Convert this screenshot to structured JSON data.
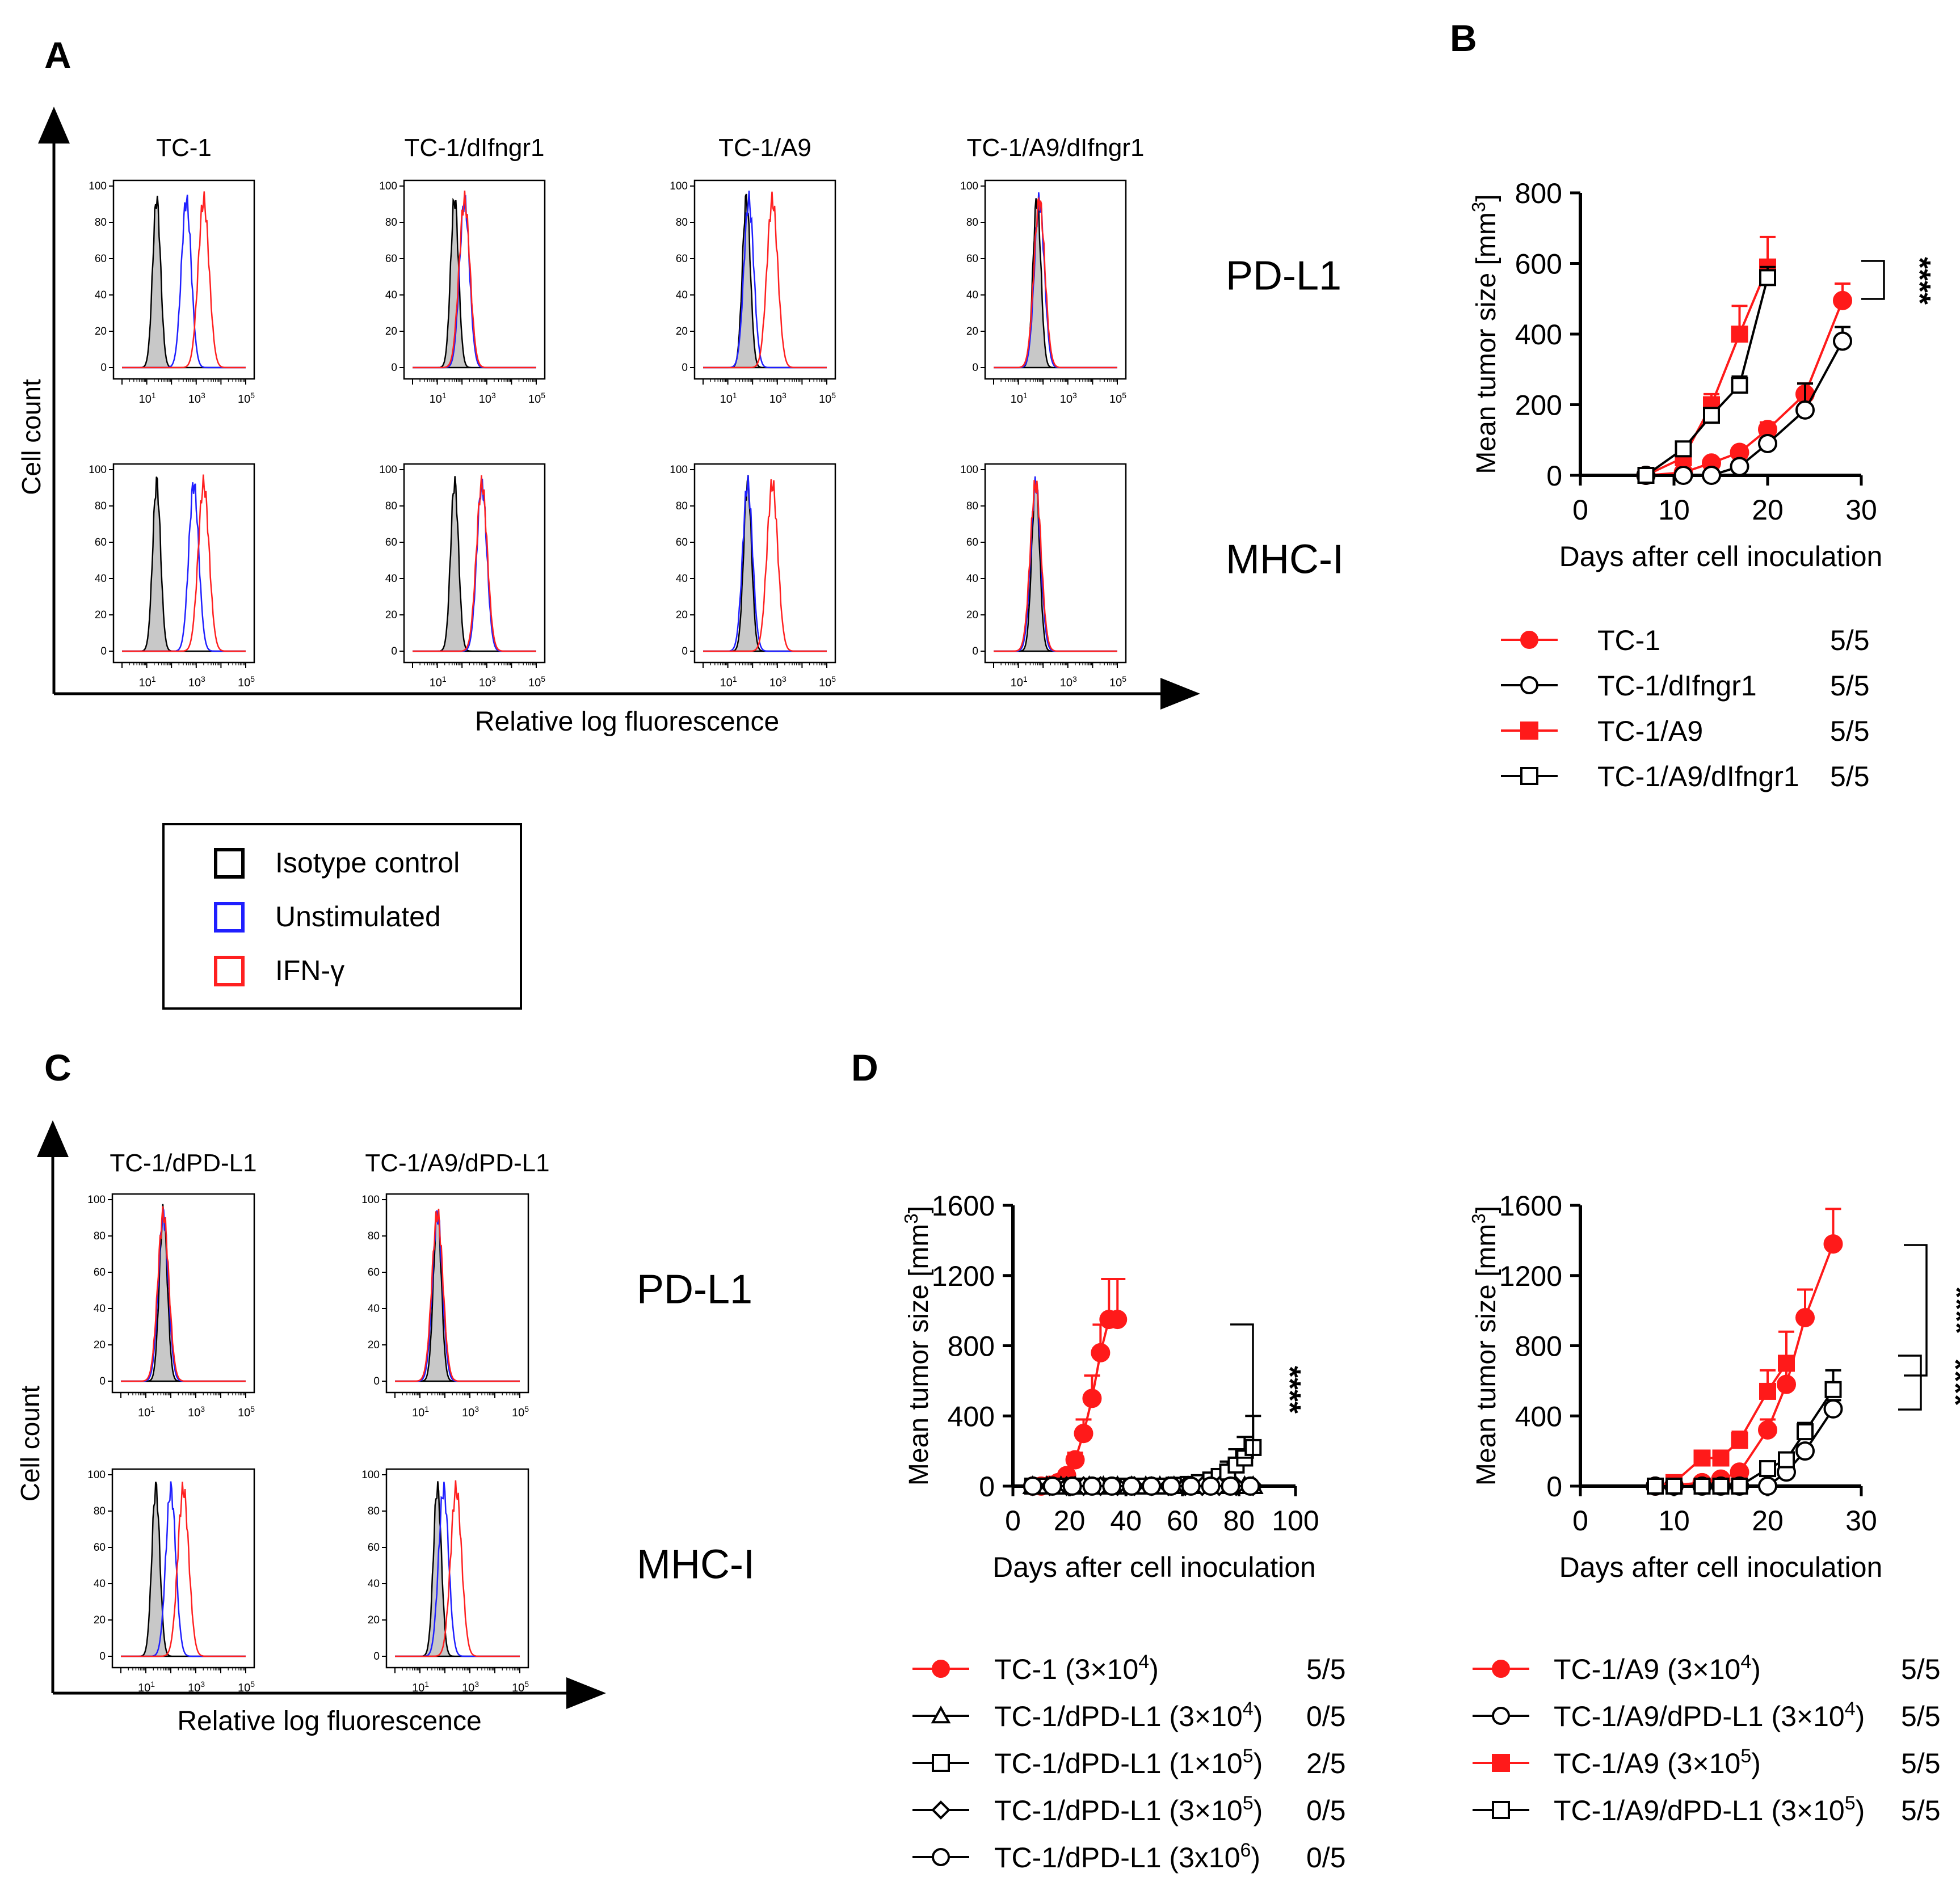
{
  "panel_labels": {
    "a": "A",
    "b": "B",
    "c": "C",
    "d": "D"
  },
  "flow_common": {
    "y_axis_label": "Cell count",
    "x_axis_label": "Relative log fluorescence",
    "y_ticks": [
      "100",
      "80",
      "60",
      "40",
      "20",
      "0"
    ],
    "x_tick_base": "10",
    "x_tick_exps": [
      "1",
      "3",
      "5"
    ]
  },
  "legend_flow": {
    "items": [
      {
        "label": "Isotype control",
        "color": "#000000"
      },
      {
        "label": "Unstimulated",
        "color": "#1f1fff"
      },
      {
        "label": "IFN-γ",
        "color": "#ff2020"
      }
    ]
  },
  "panel_a": {
    "columns": [
      "TC-1",
      "TC-1/dIfngr1",
      "TC-1/A9",
      "TC-1/A9/dIfngr1"
    ],
    "rows": [
      "PD-L1",
      "MHC-I"
    ],
    "peaks": [
      [
        {
          "iso": 1.4,
          "uns": 2.6,
          "ifn": 3.3
        },
        {
          "iso": 1.7,
          "uns": 2.1,
          "ifn": 2.1
        },
        {
          "iso": 1.75,
          "uns": 1.85,
          "ifn": 2.8
        },
        {
          "iso": 1.75,
          "uns": 1.85,
          "ifn": 1.85
        }
      ],
      [
        {
          "iso": 1.4,
          "uns": 2.9,
          "ifn": 3.3
        },
        {
          "iso": 1.7,
          "uns": 2.8,
          "ifn": 2.8
        },
        {
          "iso": 1.8,
          "uns": 1.8,
          "ifn": 2.8
        },
        {
          "iso": 1.7,
          "uns": 1.7,
          "ifn": 1.7
        }
      ]
    ]
  },
  "panel_c": {
    "columns": [
      "TC-1/dPD-L1",
      "TC-1/A9/dPD-L1"
    ],
    "rows": [
      "PD-L1",
      "MHC-I"
    ],
    "peaks": [
      [
        {
          "iso": 1.7,
          "uns": 1.7,
          "ifn": 1.7
        },
        {
          "iso": 1.7,
          "uns": 1.7,
          "ifn": 1.7
        }
      ],
      [
        {
          "iso": 1.4,
          "uns": 2.0,
          "ifn": 2.5
        },
        {
          "iso": 1.7,
          "uns": 1.95,
          "ifn": 2.45
        }
      ]
    ]
  },
  "chart_data": [
    {
      "id": "B",
      "type": "line",
      "title": "",
      "xlabel": "Days after cell inoculation",
      "ylabel": "Mean tumor size [mm",
      "ylabel_sup": "3",
      "ylabel_end": "]",
      "xlim": [
        0,
        30
      ],
      "ylim": [
        0,
        800
      ],
      "xticks": [
        0,
        10,
        20,
        30
      ],
      "yticks": [
        0,
        200,
        400,
        600,
        800
      ],
      "significance": "****",
      "series": [
        {
          "name": "TC-1",
          "ratio": "5/5",
          "color": "#ff1a1a",
          "marker": "circle",
          "filled": true,
          "x": [
            7,
            11,
            14,
            17,
            20,
            24,
            28
          ],
          "y": [
            0,
            8,
            35,
            65,
            130,
            230,
            495
          ],
          "err": [
            0,
            4,
            8,
            12,
            20,
            30,
            48
          ]
        },
        {
          "name": "TC-1/dIfngr1",
          "ratio": "5/5",
          "color": "#000000",
          "marker": "circle",
          "filled": false,
          "x": [
            7,
            11,
            14,
            17,
            20,
            24,
            28
          ],
          "y": [
            0,
            0,
            0,
            25,
            90,
            185,
            380
          ],
          "err": [
            0,
            0,
            0,
            6,
            15,
            75,
            40
          ]
        },
        {
          "name": "TC-1/A9",
          "ratio": "5/5",
          "color": "#ff1a1a",
          "marker": "square",
          "filled": true,
          "x": [
            7,
            11,
            14,
            17,
            20
          ],
          "y": [
            0,
            50,
            200,
            400,
            590
          ],
          "err": [
            0,
            10,
            30,
            80,
            85
          ]
        },
        {
          "name": "TC-1/A9/dIfngr1",
          "ratio": "5/5",
          "color": "#000000",
          "marker": "square",
          "filled": false,
          "x": [
            7,
            11,
            14,
            17,
            20
          ],
          "y": [
            0,
            75,
            170,
            255,
            560
          ],
          "err": [
            0,
            10,
            20,
            25,
            30
          ]
        }
      ]
    },
    {
      "id": "D-left",
      "type": "line",
      "title": "",
      "xlabel": "Days after cell inoculation",
      "ylabel": "Mean tumor size [mm",
      "ylabel_sup": "3",
      "ylabel_end": "]",
      "xlim": [
        0,
        100
      ],
      "ylim": [
        0,
        1600
      ],
      "xticks": [
        0,
        20,
        40,
        60,
        80,
        100
      ],
      "yticks": [
        0,
        400,
        800,
        1200,
        1600
      ],
      "significance": "****",
      "series": [
        {
          "name": "TC-1 (3×10",
          "exp": "4",
          "close": ")",
          "ratio": "5/5",
          "color": "#ff1a1a",
          "marker": "circle",
          "filled": true,
          "x": [
            7,
            10,
            13,
            16,
            19,
            22,
            25,
            28,
            31,
            34,
            37
          ],
          "y": [
            0,
            0,
            5,
            20,
            60,
            150,
            300,
            500,
            760,
            950,
            950
          ],
          "err": [
            0,
            0,
            3,
            5,
            15,
            40,
            80,
            130,
            160,
            230,
            230
          ]
        },
        {
          "name": "TC-1/dPD-L1 (3×10",
          "exp": "4",
          "close": ")",
          "ratio": "0/5",
          "color": "#000000",
          "marker": "triangle",
          "filled": false,
          "x": [
            7,
            12,
            17,
            22,
            27,
            32,
            37,
            42,
            47,
            52,
            57,
            62,
            67,
            72,
            77,
            82,
            85
          ],
          "y": [
            0,
            0,
            0,
            0,
            0,
            0,
            0,
            0,
            0,
            0,
            0,
            0,
            0,
            0,
            0,
            0,
            0
          ],
          "err": []
        },
        {
          "name": "TC-1/dPD-L1 (1×10",
          "exp": "5",
          "close": ")",
          "ratio": "2/5",
          "color": "#000000",
          "marker": "square",
          "filled": false,
          "x": [
            7,
            12,
            17,
            22,
            27,
            32,
            37,
            42,
            47,
            52,
            57,
            62,
            66,
            70,
            73,
            76,
            79,
            82,
            85
          ],
          "y": [
            0,
            0,
            0,
            0,
            0,
            0,
            0,
            0,
            0,
            0,
            5,
            10,
            20,
            35,
            55,
            80,
            120,
            160,
            220
          ],
          "err": [
            0,
            0,
            0,
            0,
            0,
            0,
            0,
            0,
            0,
            0,
            5,
            10,
            15,
            25,
            40,
            60,
            90,
            120,
            180
          ]
        },
        {
          "name": "TC-1/dPD-L1 (3×10",
          "exp": "5",
          "close": ")",
          "ratio": "0/5",
          "color": "#000000",
          "marker": "diamond",
          "filled": false,
          "x": [
            7,
            13,
            19,
            25,
            31,
            37,
            43,
            49,
            55,
            61,
            67,
            73,
            79,
            85
          ],
          "y": [
            0,
            0,
            0,
            0,
            0,
            0,
            0,
            0,
            0,
            0,
            0,
            0,
            0,
            0
          ],
          "err": []
        },
        {
          "name": "TC-1/dPD-L1 (3x10",
          "exp": "6",
          "close": ")",
          "ratio": "0/5",
          "color": "#000000",
          "marker": "circle",
          "filled": false,
          "x": [
            7,
            14,
            21,
            28,
            35,
            42,
            49,
            56,
            63,
            70,
            77,
            84
          ],
          "y": [
            0,
            0,
            0,
            0,
            0,
            0,
            0,
            0,
            0,
            0,
            0,
            0
          ],
          "err": []
        }
      ]
    },
    {
      "id": "D-right",
      "type": "line",
      "title": "",
      "xlabel": "Days after cell inoculation",
      "ylabel": "Mean tumor size [mm",
      "ylabel_sup": "3",
      "ylabel_end": "]",
      "xlim": [
        0,
        30
      ],
      "ylim": [
        0,
        1600
      ],
      "xticks": [
        0,
        10,
        20,
        30
      ],
      "yticks": [
        0,
        400,
        800,
        1200,
        1600
      ],
      "significance": [
        "****",
        "****"
      ],
      "series": [
        {
          "name": "TC-1/A9 (3×10",
          "exp": "4",
          "close": ")",
          "ratio": "5/5",
          "color": "#ff1a1a",
          "marker": "circle",
          "filled": true,
          "x": [
            8,
            10,
            13,
            15,
            17,
            20,
            22,
            24,
            27
          ],
          "y": [
            0,
            5,
            20,
            40,
            80,
            320,
            580,
            960,
            1380
          ],
          "err": [
            0,
            3,
            8,
            12,
            20,
            60,
            90,
            160,
            200
          ]
        },
        {
          "name": "TC-1/A9/dPD-L1 (3×10",
          "exp": "4",
          "close": ")",
          "ratio": "5/5",
          "color": "#000000",
          "marker": "circle",
          "filled": false,
          "x": [
            8,
            10,
            13,
            15,
            17,
            20,
            22,
            24,
            27
          ],
          "y": [
            0,
            0,
            0,
            0,
            0,
            0,
            80,
            200,
            440
          ],
          "err": [
            0,
            0,
            0,
            0,
            0,
            0,
            10,
            30,
            50
          ]
        },
        {
          "name": "TC-1/A9 (3×10",
          "exp": "5",
          "close": ")",
          "ratio": "5/5",
          "color": "#ff1a1a",
          "marker": "square",
          "filled": true,
          "x": [
            8,
            10,
            13,
            15,
            17,
            20,
            22
          ],
          "y": [
            0,
            20,
            160,
            160,
            260,
            540,
            700
          ],
          "err": [
            0,
            8,
            30,
            30,
            50,
            120,
            180
          ]
        },
        {
          "name": "TC-1/A9/dPD-L1 (3×10",
          "exp": "5",
          "close": ")",
          "ratio": "5/5",
          "color": "#000000",
          "marker": "square",
          "filled": false,
          "x": [
            8,
            10,
            13,
            15,
            17,
            20,
            22,
            24,
            27
          ],
          "y": [
            0,
            0,
            0,
            0,
            0,
            100,
            150,
            310,
            550
          ],
          "err": [
            0,
            0,
            0,
            0,
            0,
            20,
            30,
            50,
            110
          ]
        }
      ]
    }
  ]
}
